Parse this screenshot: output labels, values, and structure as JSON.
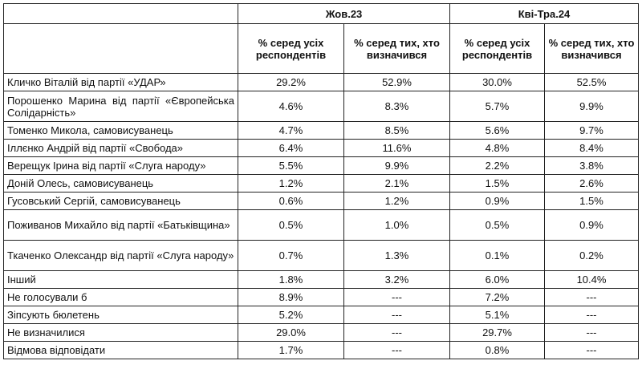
{
  "table": {
    "periods": [
      "Жов.23",
      "Кві-Тра.24"
    ],
    "subheaders": [
      "% серед усіх респондентів",
      "% серед тих, хто визначився",
      "% серед усіх респондентів",
      "% серед тих, хто визначився"
    ],
    "rows": [
      {
        "name": "Кличко Віталій від партії «УДАР»",
        "v": [
          "29.2%",
          "52.9%",
          "30.0%",
          "52.5%"
        ]
      },
      {
        "name": "Порошенко Марина від партії «Європейська Солідарність»",
        "v": [
          "4.6%",
          "8.3%",
          "5.7%",
          "9.9%"
        ]
      },
      {
        "name": "Томенко Микола, самовисуванець",
        "v": [
          "4.7%",
          "8.5%",
          "5.6%",
          "9.7%"
        ]
      },
      {
        "name": "Іллєнко Андрій від партії «Свобода»",
        "v": [
          "6.4%",
          "11.6%",
          "4.8%",
          "8.4%"
        ]
      },
      {
        "name": "Верещук Ірина від партії «Слуга народу»",
        "v": [
          "5.5%",
          "9.9%",
          "2.2%",
          "3.8%"
        ]
      },
      {
        "name": "Доній Олесь, самовисуванець",
        "v": [
          "1.2%",
          "2.1%",
          "1.5%",
          "2.6%"
        ]
      },
      {
        "name": "Гусовський Сергій, самовисуванець",
        "v": [
          "0.6%",
          "1.2%",
          "0.9%",
          "1.5%"
        ]
      },
      {
        "name": "Поживанов Михайло від партії «Батьківщина»",
        "v": [
          "0.5%",
          "1.0%",
          "0.5%",
          "0.9%"
        ]
      },
      {
        "name": "Ткаченко Олександр від партії «Слуга народу»",
        "v": [
          "0.7%",
          "1.3%",
          "0.1%",
          "0.2%"
        ]
      },
      {
        "name": "Інший",
        "v": [
          "1.8%",
          "3.2%",
          "6.0%",
          "10.4%"
        ]
      },
      {
        "name": "Не голосували б",
        "v": [
          "8.9%",
          "---",
          "7.2%",
          "---"
        ]
      },
      {
        "name": "Зіпсують бюлетень",
        "v": [
          "5.2%",
          "---",
          "5.1%",
          "---"
        ]
      },
      {
        "name": "Не визначилися",
        "v": [
          "29.0%",
          "---",
          "29.7%",
          "---"
        ]
      },
      {
        "name": "Відмова відповідати",
        "v": [
          "1.7%",
          "---",
          "0.8%",
          "---"
        ]
      }
    ]
  }
}
